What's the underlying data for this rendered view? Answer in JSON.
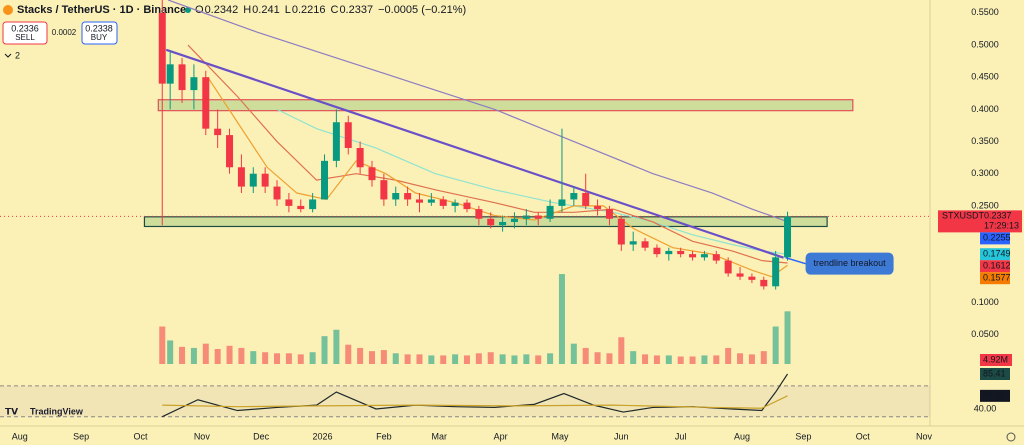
{
  "header": {
    "title": "Stacks / TetherUS · 1D · Binance",
    "ohlc": [
      {
        "key": "O",
        "value": 0.2342
      },
      {
        "key": "H",
        "value": 0.241
      },
      {
        "key": "L",
        "value": 0.2216
      },
      {
        "key": "C",
        "value": 0.2337
      }
    ],
    "change": "−0.0005 (−0.21%)",
    "sell": {
      "price": "0.2336",
      "label": "SELL"
    },
    "spread": "0.0002",
    "buy": {
      "price": "0.2338",
      "label": "BUY"
    },
    "indicators_count": "2"
  },
  "logo": "TradingView",
  "chart_data": [
    {
      "type": "candlestick",
      "symbol": "STXUSDT",
      "countdown": "17:29:13",
      "annotation": "trendline breakout",
      "up_color": "#089981",
      "down_color": "#f23645",
      "xlim": [
        -10,
        460
      ],
      "ylim": [
        0.04,
        0.57
      ],
      "xticks": [
        {
          "value": 0,
          "label": "Aug"
        },
        {
          "value": 31,
          "label": "Sep"
        },
        {
          "value": 61,
          "label": "Oct"
        },
        {
          "value": 92,
          "label": "Nov"
        },
        {
          "value": 122,
          "label": "Dec"
        },
        {
          "value": 153,
          "label": "2026"
        },
        {
          "value": 184,
          "label": "Feb"
        },
        {
          "value": 212,
          "label": "Mar"
        },
        {
          "value": 243,
          "label": "Apr"
        },
        {
          "value": 273,
          "label": "May"
        },
        {
          "value": 304,
          "label": "Jun"
        },
        {
          "value": 334,
          "label": "Jul"
        },
        {
          "value": 365,
          "label": "Aug"
        },
        {
          "value": 396,
          "label": "Sep"
        },
        {
          "value": 426,
          "label": "Oct"
        },
        {
          "value": 457,
          "label": "Nov"
        }
      ],
      "yticks": [
        {
          "value": 0.55,
          "label": "0.5500"
        },
        {
          "value": 0.5,
          "label": "0.5000"
        },
        {
          "value": 0.45,
          "label": "0.4500"
        },
        {
          "value": 0.4,
          "label": "0.4000"
        },
        {
          "value": 0.35,
          "label": "0.3500"
        },
        {
          "value": 0.3,
          "label": "0.3000"
        },
        {
          "value": 0.25,
          "label": "0.2500"
        },
        {
          "value": 0.1,
          "label": "0.1000"
        },
        {
          "value": 0.05,
          "label": "0.0500"
        }
      ],
      "x": [
        72,
        76,
        82,
        88,
        94,
        100,
        106,
        112,
        118,
        124,
        130,
        136,
        142,
        148,
        154,
        160,
        166,
        172,
        178,
        184,
        190,
        196,
        202,
        208,
        214,
        220,
        226,
        232,
        238,
        244,
        250,
        256,
        262,
        268,
        274,
        280,
        286,
        292,
        298,
        304,
        310,
        316,
        322,
        328,
        334,
        340,
        346,
        352,
        358,
        364,
        370,
        376,
        382,
        388
      ],
      "open": [
        0.55,
        0.44,
        0.47,
        0.43,
        0.45,
        0.37,
        0.36,
        0.31,
        0.28,
        0.3,
        0.28,
        0.26,
        0.25,
        0.245,
        0.26,
        0.32,
        0.38,
        0.34,
        0.31,
        0.29,
        0.26,
        0.27,
        0.26,
        0.255,
        0.26,
        0.25,
        0.255,
        0.245,
        0.23,
        0.22,
        0.225,
        0.23,
        0.235,
        0.23,
        0.25,
        0.26,
        0.27,
        0.25,
        0.245,
        0.23,
        0.19,
        0.195,
        0.185,
        0.175,
        0.18,
        0.175,
        0.17,
        0.175,
        0.165,
        0.145,
        0.14,
        0.135,
        0.125,
        0.17
      ],
      "high": [
        0.57,
        0.49,
        0.48,
        0.47,
        0.46,
        0.4,
        0.37,
        0.33,
        0.31,
        0.31,
        0.29,
        0.27,
        0.26,
        0.27,
        0.33,
        0.4,
        0.39,
        0.35,
        0.32,
        0.3,
        0.28,
        0.28,
        0.27,
        0.27,
        0.265,
        0.26,
        0.26,
        0.25,
        0.24,
        0.235,
        0.24,
        0.245,
        0.24,
        0.26,
        0.37,
        0.28,
        0.3,
        0.26,
        0.25,
        0.235,
        0.21,
        0.2,
        0.19,
        0.185,
        0.185,
        0.18,
        0.18,
        0.18,
        0.17,
        0.155,
        0.145,
        0.14,
        0.18,
        0.241
      ],
      "low": [
        0.22,
        0.4,
        0.41,
        0.4,
        0.36,
        0.34,
        0.3,
        0.27,
        0.27,
        0.27,
        0.25,
        0.24,
        0.24,
        0.24,
        0.26,
        0.31,
        0.33,
        0.3,
        0.28,
        0.25,
        0.25,
        0.25,
        0.24,
        0.25,
        0.245,
        0.24,
        0.24,
        0.22,
        0.215,
        0.21,
        0.215,
        0.22,
        0.22,
        0.225,
        0.24,
        0.25,
        0.245,
        0.235,
        0.22,
        0.18,
        0.18,
        0.18,
        0.17,
        0.165,
        0.17,
        0.165,
        0.165,
        0.16,
        0.14,
        0.135,
        0.13,
        0.12,
        0.12,
        0.165
      ],
      "close": [
        0.44,
        0.47,
        0.43,
        0.45,
        0.37,
        0.36,
        0.31,
        0.28,
        0.3,
        0.28,
        0.26,
        0.25,
        0.245,
        0.26,
        0.32,
        0.38,
        0.34,
        0.31,
        0.29,
        0.26,
        0.27,
        0.26,
        0.255,
        0.26,
        0.25,
        0.255,
        0.245,
        0.23,
        0.22,
        0.225,
        0.23,
        0.235,
        0.23,
        0.25,
        0.26,
        0.27,
        0.25,
        0.245,
        0.23,
        0.19,
        0.195,
        0.185,
        0.175,
        0.18,
        0.175,
        0.17,
        0.175,
        0.165,
        0.145,
        0.14,
        0.135,
        0.125,
        0.17,
        0.2337
      ],
      "series": [
        {
          "type": "line",
          "color": "#8e7cc3",
          "label_bg": "#2962ff",
          "x": [
            75,
            120,
            160,
            200,
            240,
            280,
            320,
            350,
            370,
            388
          ],
          "values": [
            0.57,
            0.52,
            0.48,
            0.44,
            0.4,
            0.35,
            0.3,
            0.27,
            0.245,
            0.2255
          ]
        },
        {
          "type": "line",
          "color": "#8fe3d0",
          "label_bg": "#26c6da",
          "x": [
            130,
            150,
            180,
            210,
            240,
            270,
            300,
            320,
            340,
            360,
            375,
            388
          ],
          "values": [
            0.4,
            0.37,
            0.34,
            0.3,
            0.275,
            0.255,
            0.24,
            0.225,
            0.205,
            0.19,
            0.18,
            0.1749
          ]
        },
        {
          "type": "line",
          "color": "#e0704f",
          "label_bg": "#f23645",
          "x": [
            85,
            110,
            130,
            150,
            170,
            190,
            210,
            240,
            260,
            280,
            300,
            320,
            340,
            360,
            375,
            388
          ],
          "values": [
            0.5,
            0.42,
            0.35,
            0.29,
            0.3,
            0.29,
            0.275,
            0.255,
            0.24,
            0.24,
            0.245,
            0.225,
            0.195,
            0.18,
            0.165,
            0.1612
          ]
        },
        {
          "type": "line",
          "color": "#f0a030",
          "label_bg": "#f57c00",
          "x": [
            95,
            110,
            125,
            140,
            155,
            170,
            185,
            200,
            220,
            240,
            260,
            280,
            295,
            310,
            330,
            350,
            370,
            380,
            388
          ],
          "values": [
            0.45,
            0.38,
            0.31,
            0.27,
            0.26,
            0.32,
            0.3,
            0.27,
            0.255,
            0.235,
            0.228,
            0.25,
            0.25,
            0.215,
            0.185,
            0.175,
            0.15,
            0.14,
            0.1577
          ]
        }
      ],
      "zones": [
        {
          "x": [
            70,
            421
          ],
          "y": [
            0.398,
            0.415
          ],
          "color": "#e0505a"
        },
        {
          "x": [
            63,
            408
          ],
          "y": [
            0.218,
            0.233
          ],
          "color": "#1c4a44"
        }
      ],
      "trendline": {
        "color": "#6a4fc8",
        "x": [
          74,
          386
        ],
        "y": [
          0.4926,
          0.1695
        ]
      }
    },
    {
      "type": "bar",
      "xlim": [
        -10,
        460
      ],
      "ylim": [
        0,
        34
      ],
      "x": [
        72,
        76,
        82,
        88,
        94,
        100,
        106,
        112,
        118,
        124,
        130,
        136,
        142,
        148,
        154,
        160,
        166,
        172,
        178,
        184,
        190,
        196,
        202,
        208,
        214,
        220,
        226,
        232,
        238,
        244,
        250,
        256,
        262,
        268,
        274,
        280,
        286,
        292,
        298,
        304,
        310,
        316,
        322,
        328,
        334,
        340,
        346,
        352,
        358,
        364,
        370,
        376,
        382,
        388
      ],
      "values": [
        3.5,
        2.2,
        1.6,
        1.5,
        1.9,
        1.4,
        1.7,
        1.5,
        1.2,
        1.1,
        1.0,
        1.0,
        0.9,
        1.1,
        2.6,
        3.2,
        1.8,
        1.5,
        1.2,
        1.3,
        1.0,
        0.9,
        0.9,
        0.8,
        0.8,
        0.9,
        0.8,
        1.0,
        1.1,
        0.9,
        0.8,
        0.9,
        0.8,
        1.0,
        8.4,
        1.9,
        1.5,
        1.1,
        1.0,
        2.5,
        1.2,
        0.9,
        0.8,
        0.8,
        0.7,
        0.7,
        0.8,
        0.8,
        1.5,
        1.0,
        0.9,
        1.2,
        3.5,
        4.92
      ],
      "value_labels": [
        null,
        null,
        null,
        null,
        null,
        null,
        null,
        null,
        null,
        null,
        null,
        null,
        null,
        null,
        null,
        null,
        null,
        null,
        null,
        null,
        null,
        null,
        null,
        null,
        null,
        null,
        null,
        null,
        null,
        null,
        null,
        null,
        null,
        null,
        null,
        null,
        null,
        null,
        null,
        null,
        null,
        null,
        null,
        null,
        null,
        null,
        null,
        null,
        null,
        null,
        null,
        null,
        null,
        "4.92M"
      ]
    },
    {
      "type": "line",
      "xlim": [
        -10,
        460
      ],
      "ylim": [
        20,
        88
      ],
      "bands": [
        30,
        70
      ],
      "yticks": [
        {
          "value": 40,
          "label": "40.00"
        }
      ],
      "series": [
        {
          "color": "#1f2a2a",
          "label_bg": "#1c4a44",
          "x": [
            72,
            90,
            110,
            130,
            150,
            160,
            180,
            200,
            220,
            240,
            260,
            275,
            290,
            305,
            320,
            340,
            360,
            375,
            382,
            388
          ],
          "values": [
            30,
            52,
            38,
            42,
            45,
            62,
            40,
            45,
            43,
            42,
            46,
            60,
            45,
            36,
            42,
            43,
            40,
            38,
            62,
            85.41
          ]
        },
        {
          "color": "#c9a227",
          "label_bg": "#131722",
          "x": [
            72,
            110,
            150,
            200,
            250,
            300,
            350,
            375,
            388
          ],
          "values": [
            45,
            43,
            44,
            45,
            44,
            45,
            42,
            41,
            57.05
          ]
        }
      ]
    }
  ]
}
